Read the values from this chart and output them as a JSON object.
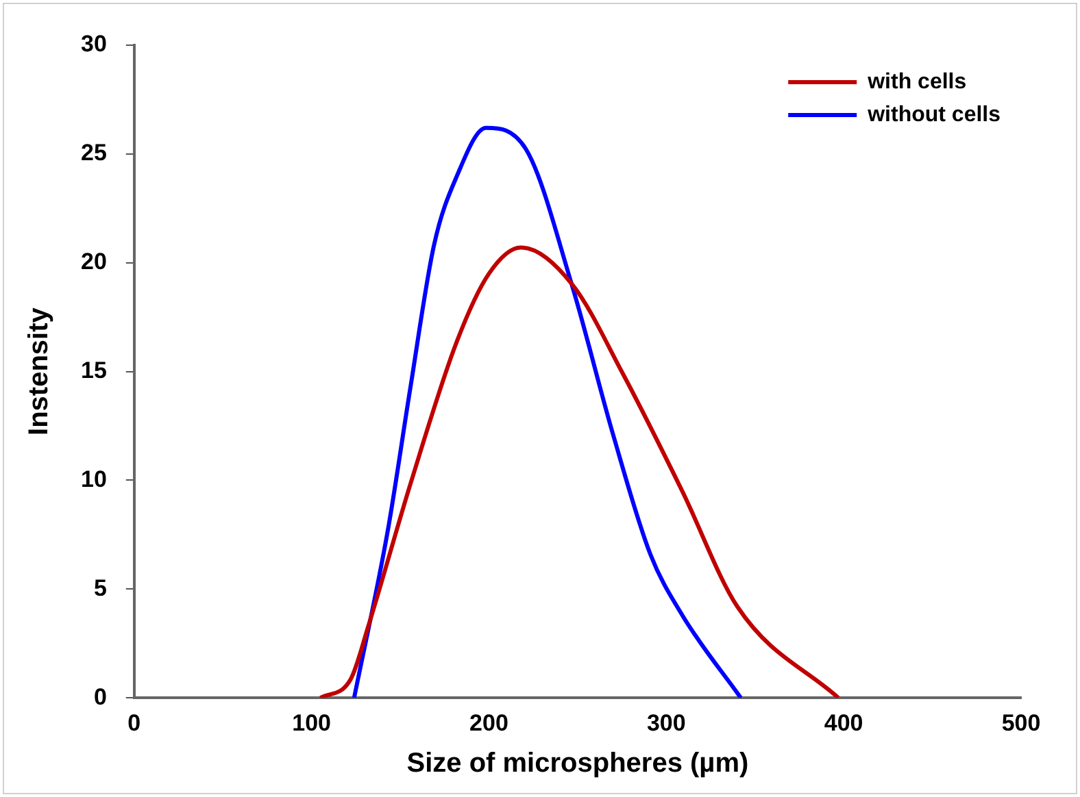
{
  "chart_data": {
    "type": "line",
    "xlabel": "Size of microspheres (µm)",
    "ylabel": "Instensity",
    "xlim": [
      0,
      500
    ],
    "xticks": [
      0,
      100,
      200,
      300,
      400,
      500
    ],
    "ylim": [
      0,
      30
    ],
    "yticks": [
      0,
      5,
      10,
      15,
      20,
      25,
      30
    ],
    "grid": false,
    "legend": "top right",
    "marker": "none",
    "line_style": "solid",
    "series": [
      {
        "name": "with cells",
        "color": "#c00000",
        "x": [
          105,
          122,
          132,
          156,
          182,
          200,
          218,
          247,
          275.5,
          309,
          340,
          397
        ],
        "values": [
          0,
          0.85,
          3.3,
          9.9,
          16.4,
          19.5,
          20.7,
          19.0,
          14.9,
          9.5,
          4.2,
          0
        ]
      },
      {
        "name": "without cells",
        "color": "#0000ff",
        "x": [
          124,
          143,
          155.6,
          169,
          182,
          198.4,
          221,
          246.7,
          270,
          291,
          309,
          342
        ],
        "values": [
          0,
          7.7,
          14.2,
          20.8,
          24,
          26.2,
          25.2,
          19.0,
          12.1,
          6.6,
          3.8,
          0
        ]
      }
    ]
  }
}
